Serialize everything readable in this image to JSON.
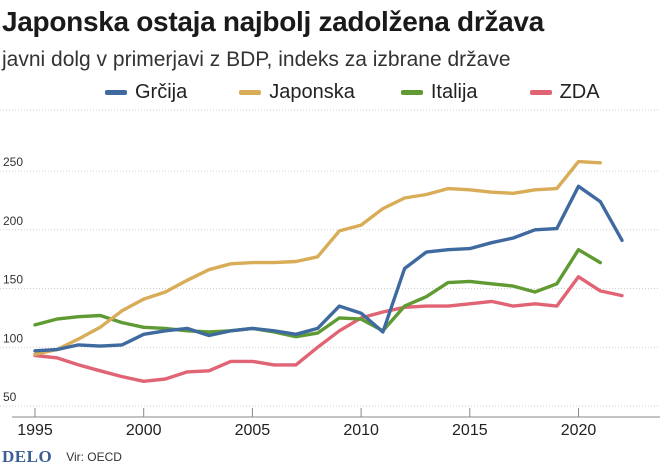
{
  "header": {
    "title": "Japonska ostaja najbolj zadolžena država",
    "subtitle": "javni dolg v primerjavi z BDP, indeks za izbrane države"
  },
  "footer": {
    "logo": "DELO",
    "source": "Vir: OECD"
  },
  "chart_data": {
    "type": "line",
    "title": "Japonska ostaja najbolj zadolžena država",
    "subtitle": "javni dolg v primerjavi z BDP, indeks za izbrane države",
    "xlabel": "",
    "ylabel": "",
    "xlim": [
      1995,
      2022
    ],
    "ylim": [
      50,
      265
    ],
    "grid": true,
    "legend_position": "top",
    "x_ticks": [
      1995,
      2000,
      2005,
      2010,
      2015,
      2020
    ],
    "y_ticks": [
      50,
      100,
      150,
      200,
      250
    ],
    "x": [
      1995,
      1996,
      1997,
      1998,
      1999,
      2000,
      2001,
      2002,
      2003,
      2004,
      2005,
      2006,
      2007,
      2008,
      2009,
      2010,
      2011,
      2012,
      2013,
      2014,
      2015,
      2016,
      2017,
      2018,
      2019,
      2020,
      2021,
      2022
    ],
    "series": [
      {
        "name": "Grčija",
        "color": "#3f6a9f",
        "values": [
          97,
          98,
          102,
          101,
          102,
          111,
          114,
          116,
          110,
          114,
          116,
          114,
          111,
          116,
          135,
          129,
          113,
          167,
          181,
          183,
          184,
          189,
          193,
          200,
          201,
          237,
          224,
          191
        ]
      },
      {
        "name": "Japonska",
        "color": "#d9ac57",
        "values": [
          94,
          98,
          107,
          117,
          131,
          141,
          147,
          157,
          166,
          171,
          172,
          172,
          173,
          177,
          199,
          204,
          218,
          227,
          230,
          235,
          234,
          232,
          231,
          234,
          235,
          258,
          257,
          null
        ]
      },
      {
        "name": "Italija",
        "color": "#5f9a32",
        "values": [
          119,
          124,
          126,
          127,
          121,
          117,
          116,
          114,
          113,
          114,
          116,
          113,
          109,
          112,
          125,
          124,
          114,
          135,
          143,
          155,
          156,
          154,
          152,
          147,
          154,
          183,
          172,
          null
        ]
      },
      {
        "name": "ZDA",
        "color": "#e06474",
        "values": [
          93,
          91,
          85,
          80,
          75,
          71,
          73,
          79,
          80,
          88,
          88,
          85,
          85,
          100,
          114,
          125,
          130,
          134,
          135,
          135,
          137,
          139,
          135,
          137,
          135,
          160,
          148,
          144
        ]
      }
    ]
  }
}
